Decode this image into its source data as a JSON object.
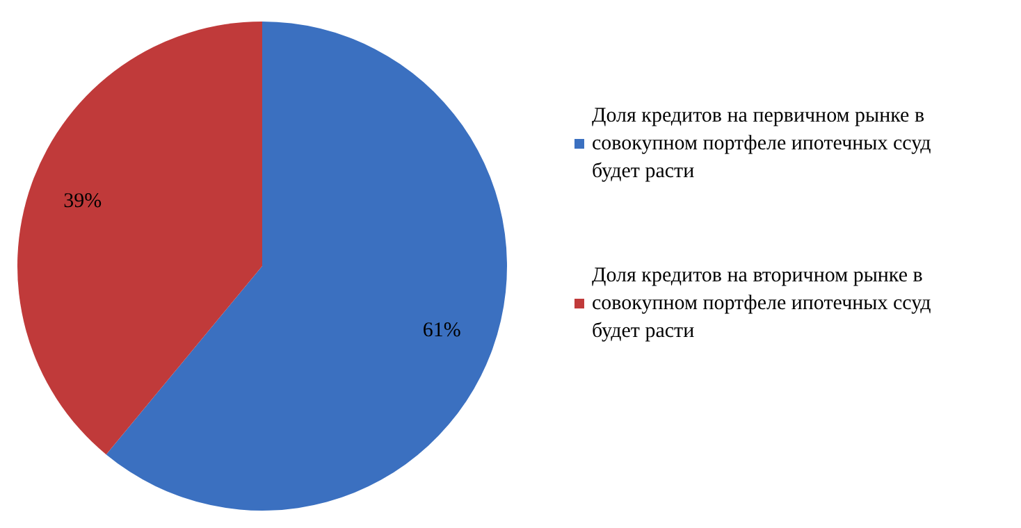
{
  "chart_data": {
    "type": "pie",
    "categories": [
      "Доля кредитов на первичном рынке в совокупном портфеле ипотечных ссуд будет расти",
      "Доля кредитов на вторичном рынке в совокупном портфеле ипотечных ссуд будет расти"
    ],
    "values": [
      61,
      39
    ],
    "colors": [
      "#3b70c0",
      "#c03a3a"
    ],
    "value_labels": [
      "61%",
      "39%"
    ],
    "legend": "right"
  }
}
